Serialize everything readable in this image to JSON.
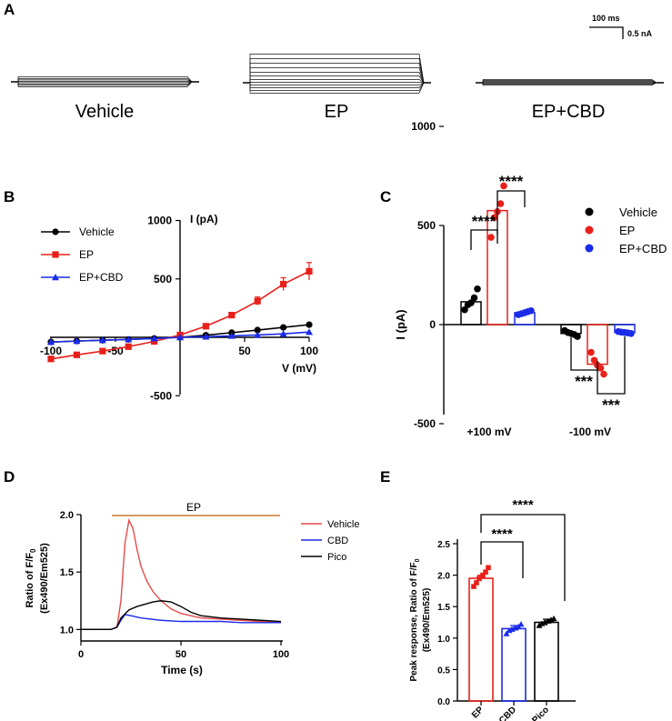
{
  "colors": {
    "vehicle": "#000000",
    "ep": "#e8201a",
    "epcbd": "#1a2be8",
    "pico": "#000000",
    "line_ep": "#e84a4a",
    "bar_bar": "#c87830"
  },
  "panels": [
    "A",
    "B",
    "C",
    "D",
    "E"
  ],
  "panel_a": {
    "scale_time": "100 ms",
    "scale_current": "0.5 nA",
    "labels": [
      "Vehicle",
      "EP",
      "EP+CBD"
    ]
  },
  "chart_data": [
    {
      "panel": "B",
      "type": "line",
      "xlabel": "V (mV)",
      "ylabel": "I (pA)",
      "xlim": [
        -100,
        100
      ],
      "ylim": [
        -500,
        1000
      ],
      "x_ticks": [
        "-100",
        "-50",
        "50",
        "100"
      ],
      "y_ticks": [
        "-500",
        "500",
        "1000"
      ],
      "legend_position": "top-left",
      "x": [
        -100,
        -80,
        -60,
        -40,
        -20,
        0,
        20,
        40,
        60,
        80,
        100
      ],
      "series": [
        {
          "name": "Vehicle",
          "marker": "circle",
          "values": [
            -40,
            -32,
            -25,
            -18,
            -10,
            0,
            18,
            40,
            62,
            85,
            108
          ]
        },
        {
          "name": "EP",
          "marker": "square",
          "values": [
            -185,
            -150,
            -118,
            -80,
            -35,
            20,
            95,
            190,
            310,
            455,
            565
          ]
        },
        {
          "name": "EP+CBD",
          "marker": "triangle",
          "values": [
            -40,
            -32,
            -25,
            -18,
            -10,
            0,
            5,
            12,
            20,
            30,
            45
          ]
        }
      ]
    },
    {
      "panel": "C",
      "type": "bar",
      "ylabel": "I (pA)",
      "ylim": [
        -1000,
        1000
      ],
      "y_ticks": [
        "1000",
        "500",
        "0",
        "-500"
      ],
      "categories": [
        "+100 mV",
        "-100 mV"
      ],
      "legend_position": "top-right",
      "series": [
        {
          "name": "Vehicle",
          "values": [
            115,
            -45
          ],
          "points": [
            [
              75,
              100,
              110,
              135,
              180
            ],
            [
              -30,
              -40,
              -45,
              -50,
              -60
            ]
          ]
        },
        {
          "name": "EP",
          "values": [
            575,
            -200
          ],
          "points": [
            [
              440,
              540,
              570,
              610,
              700
            ],
            [
              -140,
              -180,
              -205,
              -220,
              -250
            ]
          ]
        },
        {
          "name": "EP+CBD",
          "values": [
            60,
            -40
          ],
          "points": [
            [
              50,
              55,
              60,
              65,
              70
            ],
            [
              -35,
              -38,
              -40,
              -42,
              -45
            ]
          ]
        }
      ],
      "significance": [
        "****",
        "****",
        "***",
        "***"
      ]
    },
    {
      "panel": "D",
      "type": "line",
      "xlabel": "Time (s)",
      "ylabel_line1": "Ratio of F/F",
      "ylabel_sub": "0",
      "ylabel_line2": "(Ex490/Em525)",
      "xlim": [
        0,
        100
      ],
      "ylim": [
        0.9,
        2.0
      ],
      "x_ticks": [
        "0",
        "50",
        "100"
      ],
      "y_ticks": [
        "1.0",
        "1.5",
        "2.0"
      ],
      "bar_label": "EP",
      "legend_position": "right",
      "series": [
        {
          "name": "Vehicle",
          "x": [
            0,
            5,
            10,
            15,
            18,
            20,
            22,
            24,
            26,
            28,
            30,
            33,
            36,
            40,
            45,
            50,
            60,
            70,
            80,
            90,
            100
          ],
          "values": [
            1.0,
            1.0,
            1.0,
            1.0,
            1.02,
            1.25,
            1.75,
            1.95,
            1.88,
            1.7,
            1.55,
            1.42,
            1.33,
            1.25,
            1.18,
            1.14,
            1.1,
            1.09,
            1.08,
            1.07,
            1.06
          ]
        },
        {
          "name": "CBD",
          "x": [
            0,
            5,
            10,
            15,
            18,
            20,
            22,
            25,
            30,
            40,
            50,
            60,
            70,
            80,
            90,
            100
          ],
          "values": [
            1.0,
            1.0,
            1.0,
            1.0,
            1.02,
            1.08,
            1.13,
            1.12,
            1.1,
            1.08,
            1.07,
            1.07,
            1.07,
            1.06,
            1.06,
            1.06
          ]
        },
        {
          "name": "Pico",
          "x": [
            0,
            5,
            10,
            15,
            18,
            20,
            24,
            28,
            32,
            36,
            40,
            45,
            50,
            55,
            60,
            70,
            80,
            90,
            100
          ],
          "values": [
            1.0,
            1.0,
            1.0,
            1.0,
            1.02,
            1.1,
            1.17,
            1.2,
            1.22,
            1.24,
            1.25,
            1.24,
            1.2,
            1.15,
            1.12,
            1.1,
            1.09,
            1.08,
            1.07
          ]
        }
      ]
    },
    {
      "panel": "E",
      "type": "bar",
      "ylabel_line1": "Peak response, Ratio of F/F",
      "ylabel_sub": "0",
      "ylabel_line2": "(Ex490/Em525)",
      "ylim": [
        0,
        2.5
      ],
      "y_ticks": [
        "0.0",
        "0.5",
        "1.0",
        "1.5",
        "2.0",
        "2.5"
      ],
      "categories": [
        "EP",
        "EP+CBD",
        "EP+Pico"
      ],
      "values": [
        1.95,
        1.15,
        1.25
      ],
      "points": [
        [
          1.82,
          1.88,
          1.95,
          2.0,
          2.05,
          2.12
        ],
        [
          1.07,
          1.12,
          1.14,
          1.16,
          1.18,
          1.22
        ],
        [
          1.2,
          1.23,
          1.25,
          1.27,
          1.29,
          1.31
        ]
      ],
      "significance": [
        "****",
        "****"
      ]
    }
  ]
}
